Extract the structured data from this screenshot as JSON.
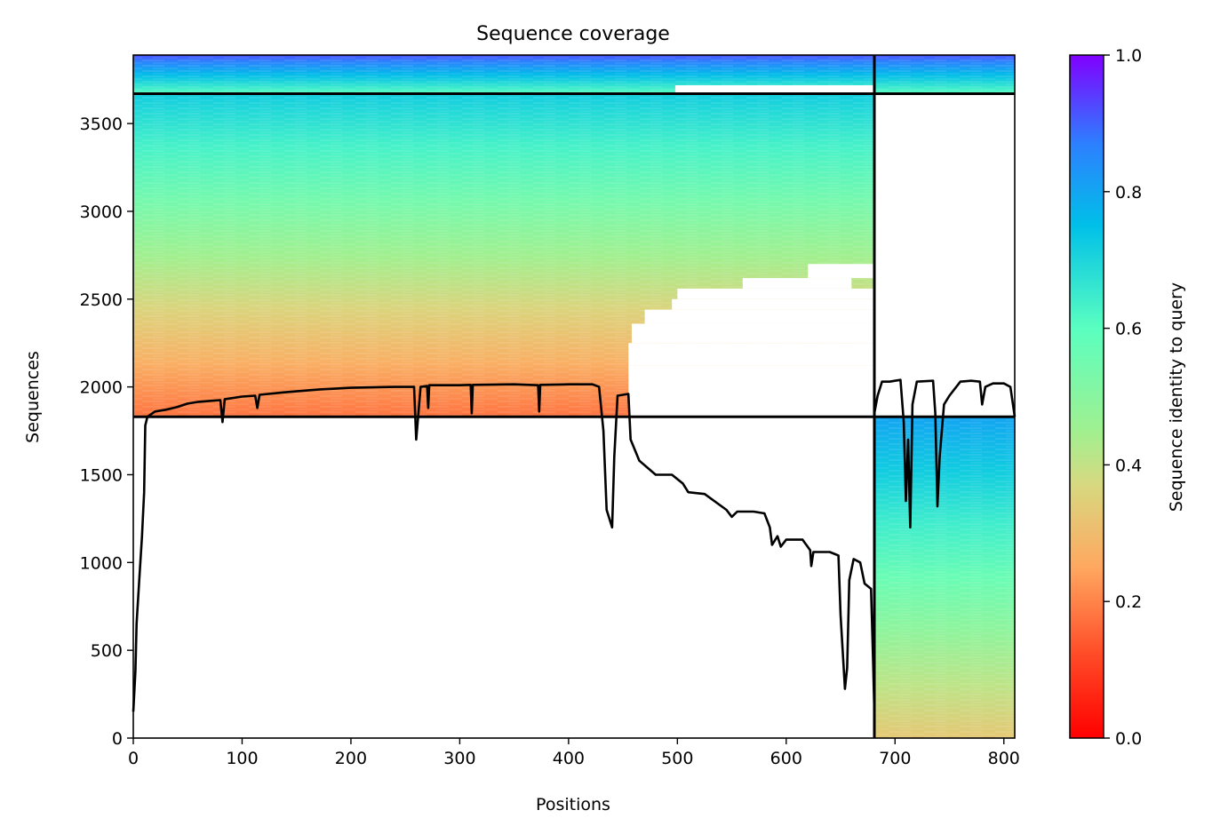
{
  "chart_data": {
    "type": "heatmap",
    "title": "Sequence coverage",
    "xlabel": "Positions",
    "ylabel": "Sequences",
    "xlim": [
      0,
      810
    ],
    "ylim": [
      0,
      3890
    ],
    "x_ticks": [
      0,
      100,
      200,
      300,
      400,
      500,
      600,
      700,
      800
    ],
    "y_ticks": [
      0,
      500,
      1000,
      1500,
      2000,
      2500,
      3000,
      3500
    ],
    "chain_boundary_x": 681,
    "group_boundary_y": [
      1830,
      3670
    ],
    "colorbar": {
      "label": "Sequence identity to query",
      "colormap": "rainbow_r",
      "range": [
        0.0,
        1.0
      ],
      "ticks": [
        0.0,
        0.2,
        0.4,
        0.6,
        0.8,
        1.0
      ]
    },
    "coverage_blocks": [
      {
        "name": "paired-top",
        "x": [
          0,
          681
        ],
        "y": [
          3670,
          3890
        ],
        "identity_bottom": 0.6,
        "identity_top": 0.92
      },
      {
        "name": "paired-top-chainB",
        "x": [
          681,
          810
        ],
        "y": [
          3670,
          3890
        ],
        "identity_bottom": 0.6,
        "identity_top": 0.92
      },
      {
        "name": "chainA-unpaired",
        "x": [
          0,
          681
        ],
        "y": [
          1830,
          3670
        ],
        "identity_bottom": 0.18,
        "identity_top": 0.72
      },
      {
        "name": "chainB-unpaired",
        "x": [
          681,
          810
        ],
        "y": [
          0,
          1830
        ],
        "identity_bottom": 0.33,
        "identity_top": 0.8
      }
    ],
    "coverage_line": {
      "color": "#000000",
      "points": [
        [
          0,
          150
        ],
        [
          2,
          380
        ],
        [
          3,
          650
        ],
        [
          5,
          850
        ],
        [
          8,
          1150
        ],
        [
          10,
          1400
        ],
        [
          11,
          1780
        ],
        [
          13,
          1830
        ],
        [
          20,
          1860
        ],
        [
          30,
          1870
        ],
        [
          40,
          1885
        ],
        [
          50,
          1905
        ],
        [
          60,
          1915
        ],
        [
          70,
          1920
        ],
        [
          80,
          1925
        ],
        [
          82,
          1800
        ],
        [
          84,
          1930
        ],
        [
          100,
          1945
        ],
        [
          112,
          1950
        ],
        [
          114,
          1880
        ],
        [
          116,
          1955
        ],
        [
          140,
          1970
        ],
        [
          170,
          1985
        ],
        [
          200,
          1995
        ],
        [
          240,
          2000
        ],
        [
          258,
          2000
        ],
        [
          260,
          1700
        ],
        [
          262,
          1850
        ],
        [
          264,
          2000
        ],
        [
          270,
          2005
        ],
        [
          271,
          1880
        ],
        [
          272,
          2010
        ],
        [
          290,
          2010
        ],
        [
          300,
          2010
        ],
        [
          310,
          2012
        ],
        [
          311,
          1850
        ],
        [
          312,
          2012
        ],
        [
          350,
          2015
        ],
        [
          372,
          2010
        ],
        [
          373,
          1860
        ],
        [
          374,
          2012
        ],
        [
          400,
          2015
        ],
        [
          422,
          2015
        ],
        [
          428,
          2000
        ],
        [
          432,
          1750
        ],
        [
          435,
          1300
        ],
        [
          440,
          1200
        ],
        [
          442,
          1600
        ],
        [
          445,
          1950
        ],
        [
          455,
          1960
        ],
        [
          457,
          1700
        ],
        [
          465,
          1580
        ],
        [
          480,
          1500
        ],
        [
          495,
          1500
        ],
        [
          505,
          1450
        ],
        [
          510,
          1400
        ],
        [
          525,
          1390
        ],
        [
          545,
          1300
        ],
        [
          550,
          1260
        ],
        [
          555,
          1290
        ],
        [
          570,
          1290
        ],
        [
          580,
          1280
        ],
        [
          585,
          1200
        ],
        [
          587,
          1100
        ],
        [
          592,
          1150
        ],
        [
          595,
          1090
        ],
        [
          600,
          1130
        ],
        [
          615,
          1130
        ],
        [
          622,
          1070
        ],
        [
          623,
          980
        ],
        [
          625,
          1060
        ],
        [
          640,
          1060
        ],
        [
          648,
          1040
        ],
        [
          650,
          700
        ],
        [
          654,
          280
        ],
        [
          656,
          400
        ],
        [
          658,
          900
        ],
        [
          662,
          1020
        ],
        [
          668,
          1000
        ],
        [
          672,
          880
        ],
        [
          678,
          850
        ],
        [
          680,
          400
        ],
        [
          681,
          150
        ]
      ],
      "points_chainB": [
        [
          681,
          1850
        ],
        [
          684,
          1950
        ],
        [
          688,
          2030
        ],
        [
          695,
          2030
        ],
        [
          705,
          2040
        ],
        [
          708,
          1800
        ],
        [
          710,
          1350
        ],
        [
          712,
          1700
        ],
        [
          714,
          1200
        ],
        [
          716,
          1900
        ],
        [
          720,
          2030
        ],
        [
          735,
          2035
        ],
        [
          737,
          1850
        ],
        [
          739,
          1320
        ],
        [
          741,
          1600
        ],
        [
          745,
          1900
        ],
        [
          750,
          1950
        ],
        [
          760,
          2030
        ],
        [
          770,
          2035
        ],
        [
          778,
          2030
        ],
        [
          780,
          1900
        ],
        [
          783,
          2000
        ],
        [
          790,
          2020
        ],
        [
          800,
          2020
        ],
        [
          806,
          2000
        ],
        [
          810,
          1830
        ]
      ]
    }
  }
}
